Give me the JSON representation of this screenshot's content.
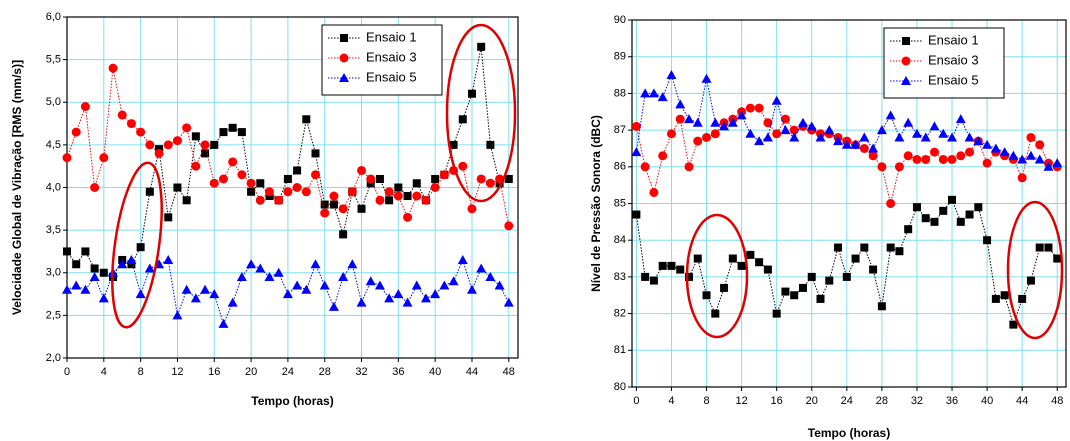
{
  "chart_data": [
    {
      "type": "line",
      "y_label": "Velocidade Global de Vibração [RMS (mm/s)]",
      "x_label": "Tempo (horas)",
      "x": [
        0,
        1,
        2,
        3,
        4,
        5,
        6,
        7,
        8,
        9,
        10,
        11,
        12,
        13,
        14,
        15,
        16,
        17,
        18,
        19,
        20,
        21,
        22,
        23,
        24,
        25,
        26,
        27,
        28,
        29,
        30,
        31,
        32,
        33,
        34,
        35,
        36,
        37,
        38,
        39,
        40,
        41,
        42,
        43,
        44,
        45,
        46,
        47,
        48
      ],
      "series": [
        {
          "name": "Ensaio 1",
          "color": "#000000",
          "marker": "square",
          "values": [
            3.25,
            3.1,
            3.25,
            3.05,
            3.0,
            2.95,
            3.15,
            3.1,
            3.3,
            3.95,
            4.45,
            3.65,
            4.0,
            3.85,
            4.6,
            4.4,
            4.5,
            4.65,
            4.7,
            4.65,
            3.95,
            4.05,
            3.9,
            3.85,
            4.1,
            4.2,
            4.8,
            4.4,
            3.8,
            3.8,
            3.45,
            3.95,
            3.75,
            4.05,
            4.1,
            3.85,
            4.0,
            3.9,
            4.05,
            3.85,
            4.1,
            4.15,
            4.5,
            4.8,
            5.1,
            5.65,
            4.5,
            4.05,
            4.1
          ]
        },
        {
          "name": "Ensaio 3",
          "color": "#ff0000",
          "marker": "circle",
          "values": [
            4.35,
            4.65,
            4.95,
            4.0,
            4.35,
            5.4,
            4.85,
            4.75,
            4.65,
            4.5,
            4.4,
            4.5,
            4.55,
            4.7,
            4.25,
            4.5,
            4.05,
            4.1,
            4.3,
            4.15,
            4.05,
            3.85,
            3.95,
            3.85,
            3.95,
            4.0,
            3.95,
            4.15,
            3.7,
            3.9,
            3.75,
            3.95,
            4.2,
            4.1,
            3.85,
            3.95,
            3.9,
            3.65,
            3.9,
            3.85,
            4.0,
            4.15,
            4.2,
            4.25,
            3.75,
            4.1,
            4.05,
            4.1,
            3.55
          ]
        },
        {
          "name": "Ensaio 5",
          "color": "#0000ff",
          "marker": "triangle",
          "values": [
            2.8,
            2.85,
            2.8,
            2.95,
            2.7,
            3.0,
            3.1,
            3.15,
            2.75,
            3.05,
            3.1,
            3.15,
            2.5,
            2.8,
            2.7,
            2.8,
            2.75,
            2.4,
            2.65,
            2.95,
            3.1,
            3.05,
            2.95,
            3.0,
            2.75,
            2.85,
            2.8,
            3.1,
            2.85,
            2.6,
            2.95,
            3.1,
            2.65,
            2.9,
            2.85,
            2.7,
            2.75,
            2.65,
            2.85,
            2.7,
            2.75,
            2.85,
            2.9,
            3.15,
            2.8,
            3.05,
            2.95,
            2.85,
            2.65
          ]
        }
      ],
      "xlim": [
        0,
        49
      ],
      "xticks": [
        0,
        4,
        8,
        12,
        16,
        20,
        24,
        28,
        32,
        36,
        40,
        44,
        48
      ],
      "ylim": [
        2.0,
        6.0
      ],
      "yticks": [
        {
          "value": 2.0,
          "label": "2,0"
        },
        {
          "value": 2.5,
          "label": "2,5"
        },
        {
          "value": 3.0,
          "label": "3,0"
        },
        {
          "value": 3.5,
          "label": "3,5"
        },
        {
          "value": 4.0,
          "label": "4,0"
        },
        {
          "value": 4.5,
          "label": "4,5"
        },
        {
          "value": 5.0,
          "label": "5,0"
        },
        {
          "value": 5.5,
          "label": "5,5"
        },
        {
          "value": 6.0,
          "label": "6,0"
        }
      ],
      "grid": true,
      "legend": "upper right"
    },
    {
      "type": "line",
      "y_label": "Nível de Pressão Sonora (dBC)",
      "x_label": "Tempo (horas)",
      "x": [
        0,
        1,
        2,
        3,
        4,
        5,
        6,
        7,
        8,
        9,
        10,
        11,
        12,
        13,
        14,
        15,
        16,
        17,
        18,
        19,
        20,
        21,
        22,
        23,
        24,
        25,
        26,
        27,
        28,
        29,
        30,
        31,
        32,
        33,
        34,
        35,
        36,
        37,
        38,
        39,
        40,
        41,
        42,
        43,
        44,
        45,
        46,
        47,
        48
      ],
      "series": [
        {
          "name": "Ensaio 1",
          "color": "#000000",
          "marker": "square",
          "values": [
            84.7,
            83.0,
            82.9,
            83.3,
            83.3,
            83.2,
            83.0,
            83.5,
            82.5,
            82.0,
            82.7,
            83.5,
            83.3,
            83.6,
            83.4,
            83.2,
            82.0,
            82.6,
            82.5,
            82.7,
            83.0,
            82.4,
            82.9,
            83.8,
            83.0,
            83.5,
            83.8,
            83.2,
            82.2,
            83.8,
            83.7,
            84.3,
            84.9,
            84.6,
            84.5,
            84.8,
            85.1,
            84.5,
            84.7,
            84.9,
            84.0,
            82.4,
            82.5,
            81.7,
            82.4,
            82.9,
            83.8,
            83.8,
            83.5
          ]
        },
        {
          "name": "Ensaio 3",
          "color": "#ff0000",
          "marker": "circle",
          "values": [
            87.1,
            86.0,
            85.3,
            86.3,
            86.9,
            87.3,
            86.0,
            86.7,
            86.8,
            86.9,
            87.2,
            87.3,
            87.5,
            87.6,
            87.6,
            87.2,
            86.9,
            87.3,
            87.0,
            87.1,
            87.0,
            86.9,
            86.9,
            86.8,
            86.7,
            86.6,
            86.5,
            86.3,
            86.0,
            85.0,
            86.0,
            86.3,
            86.2,
            86.2,
            86.4,
            86.2,
            86.2,
            86.3,
            86.4,
            86.7,
            86.1,
            86.4,
            86.3,
            86.2,
            85.7,
            86.8,
            86.6,
            86.1,
            86.0
          ]
        },
        {
          "name": "Ensaio 5",
          "color": "#0000ff",
          "marker": "triangle",
          "values": [
            86.4,
            88.0,
            88.0,
            87.9,
            88.5,
            87.7,
            87.3,
            87.2,
            88.4,
            87.2,
            87.1,
            87.2,
            87.4,
            86.9,
            86.7,
            86.8,
            87.8,
            87.0,
            86.8,
            87.2,
            87.1,
            86.8,
            87.0,
            86.7,
            86.6,
            86.6,
            86.8,
            86.5,
            87.0,
            87.4,
            86.8,
            87.2,
            86.9,
            86.8,
            87.1,
            86.9,
            86.8,
            87.3,
            86.8,
            86.7,
            86.6,
            86.5,
            86.4,
            86.3,
            86.2,
            86.3,
            86.2,
            86.0,
            86.1
          ]
        }
      ],
      "xlim": [
        -0.5,
        49
      ],
      "xticks": [
        0,
        4,
        8,
        12,
        16,
        20,
        24,
        28,
        32,
        36,
        40,
        44,
        48
      ],
      "ylim": [
        80,
        90
      ],
      "yticks": [
        80,
        81,
        82,
        83,
        84,
        85,
        86,
        87,
        88,
        89,
        90
      ],
      "grid": true,
      "legend": "upper left"
    }
  ]
}
